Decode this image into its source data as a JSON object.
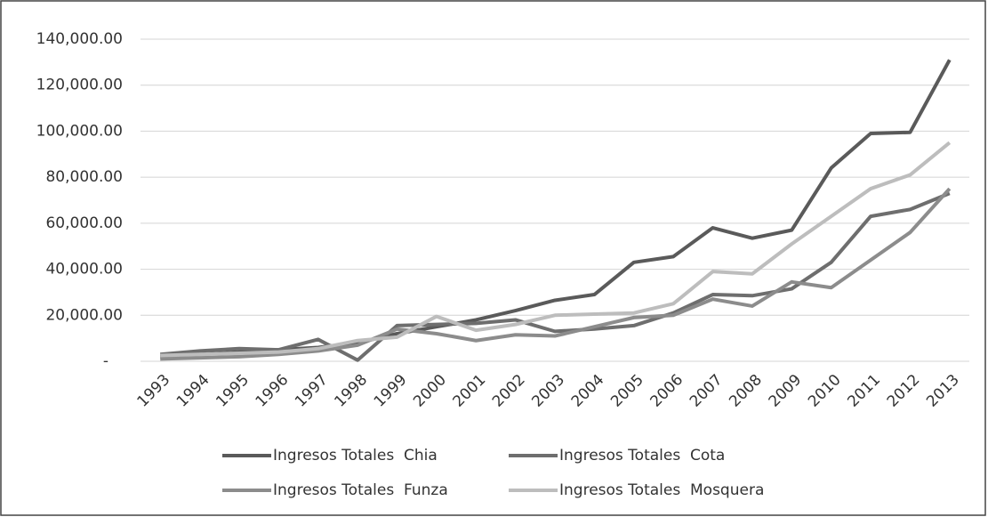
{
  "chart_data": {
    "type": "line",
    "categories": [
      "1993",
      "1994",
      "1995",
      "1996",
      "1997",
      "1998",
      "1999",
      "2000",
      "2001",
      "2002",
      "2003",
      "2004",
      "2005",
      "2006",
      "2007",
      "2008",
      "2009",
      "2010",
      "2011",
      "2012",
      "2013"
    ],
    "series": [
      {
        "name": "Ingresos Totales  Chia",
        "color": "#5a5a5a",
        "values": [
          2000,
          3000,
          4000,
          5000,
          6000,
          8000,
          12000,
          15000,
          18000,
          22000,
          26500,
          29000,
          43000,
          45500,
          58000,
          53500,
          57000,
          84000,
          99000,
          99500,
          131000
        ]
      },
      {
        "name": "Ingresos Totales  Cota",
        "color": "#6e6e6e",
        "values": [
          3000,
          4500,
          5500,
          5000,
          9500,
          500,
          15500,
          16000,
          16500,
          18000,
          13000,
          14000,
          15500,
          21000,
          29000,
          28500,
          31500,
          43000,
          63000,
          66000,
          73000
        ]
      },
      {
        "name": "Ingresos Totales  Funza",
        "color": "#8c8c8c",
        "values": [
          1000,
          1500,
          2000,
          3000,
          4500,
          7000,
          14000,
          12000,
          9000,
          11500,
          11000,
          15000,
          19000,
          20000,
          27000,
          24000,
          34500,
          32000,
          44000,
          56000,
          75000
        ]
      },
      {
        "name": "Ingresos Totales  Mosquera",
        "color": "#bdbdbd",
        "values": [
          2500,
          3000,
          3500,
          4000,
          5500,
          9000,
          10500,
          19500,
          13500,
          16000,
          20000,
          20500,
          21000,
          25000,
          39000,
          38000,
          51000,
          63000,
          75000,
          81000,
          95000
        ]
      }
    ],
    "ylim": [
      0,
      140000
    ],
    "yticks": [
      {
        "value": 0,
        "label": "-"
      },
      {
        "value": 20000,
        "label": "20,000.00"
      },
      {
        "value": 40000,
        "label": "40,000.00"
      },
      {
        "value": 60000,
        "label": "60,000.00"
      },
      {
        "value": 80000,
        "label": "80,000.00"
      },
      {
        "value": 100000,
        "label": "100,000.00"
      },
      {
        "value": 120000,
        "label": "120,000.00"
      },
      {
        "value": 140000,
        "label": "140,000.00"
      }
    ],
    "grid": true,
    "legend": "bottom"
  }
}
